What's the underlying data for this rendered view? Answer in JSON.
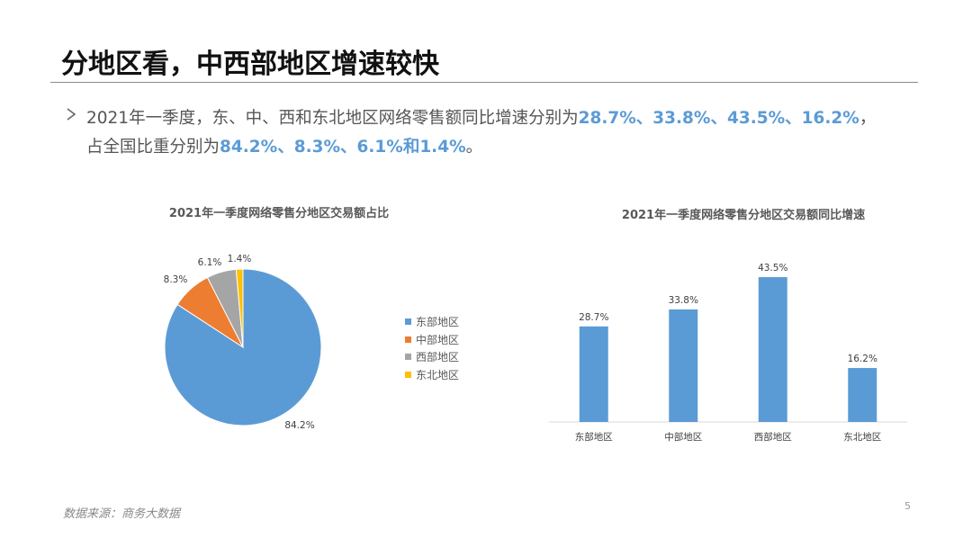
{
  "slide": {
    "title": "分地区看，中西部地区增速较快",
    "bullet": {
      "line1_text": "2021年一季度，东、中、西和东北地区网络零售额同比增速分别为",
      "line1_highlight": "28.7%、33.8%、43.5%、16.2%",
      "line1_end": "，",
      "line2_text": "占全国比重分别为",
      "line2_highlight": "84.2%、8.3%、6.1%和1.4%",
      "line2_end": "。"
    },
    "source": "数据来源：商务大数据",
    "page_number": "5"
  },
  "chart_data": [
    {
      "type": "pie",
      "title": "2021年一季度网络零售分地区交易额占比",
      "categories": [
        "东部地区",
        "中部地区",
        "西部地区",
        "东北地区"
      ],
      "values": [
        84.2,
        8.3,
        6.1,
        1.4
      ],
      "data_labels": [
        "84.2%",
        "8.3%",
        "6.1%",
        "1.4%"
      ],
      "colors": [
        "#5B9BD5",
        "#ED7D31",
        "#A5A5A5",
        "#FFC000"
      ],
      "legend_position": "right"
    },
    {
      "type": "bar",
      "title": "2021年一季度网络零售分地区交易额同比增速",
      "categories": [
        "东部地区",
        "中部地区",
        "西部地区",
        "东北地区"
      ],
      "values": [
        28.7,
        33.8,
        43.5,
        16.2
      ],
      "data_labels": [
        "28.7%",
        "33.8%",
        "43.5%",
        "16.2%"
      ],
      "color": "#5B9BD5",
      "ylim": [
        0,
        50
      ],
      "grid": false
    }
  ]
}
